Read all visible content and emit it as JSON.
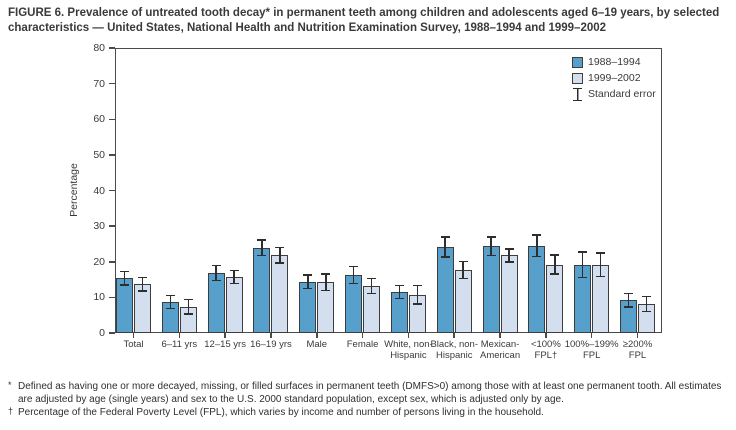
{
  "title": "FIGURE 6. Prevalence of untreated tooth decay* in permanent teeth among children and adolescents aged 6–19 years, by selected characteristics — United States, National Health and Nutrition Examination Survey, 1988–1994 and 1999–2002",
  "chart_data": {
    "type": "bar",
    "title": "Prevalence of untreated tooth decay in permanent teeth, by selected characteristics",
    "xlabel": "",
    "ylabel": "Percentage",
    "ylim": [
      0,
      80
    ],
    "ytick_step": 10,
    "grid": false,
    "legend_position": "top-right-inside",
    "legend_se_label": "Standard error",
    "colors": {
      "series_1988": "#57a0cc",
      "series_1999": "#d3deef",
      "bar_border": "#3d3d3d",
      "axis": "#4a4a4a",
      "error_bar": "#2e2e2e"
    },
    "categories": [
      [
        "Total"
      ],
      [
        "6–11 yrs"
      ],
      [
        "12–15 yrs"
      ],
      [
        "16–19 yrs"
      ],
      [
        "Male"
      ],
      [
        "Female"
      ],
      [
        "White, non-",
        "Hispanic"
      ],
      [
        "Black, non-",
        "Hispanic"
      ],
      [
        "Mexican-",
        "American"
      ],
      [
        "<100%",
        "FPL†"
      ],
      [
        "100%–199%",
        "FPL"
      ],
      [
        "≥200%",
        "FPL"
      ]
    ],
    "series": [
      {
        "name": "1988–1994",
        "values": [
          15.4,
          8.7,
          16.8,
          23.9,
          14.4,
          16.3,
          11.5,
          24.2,
          24.4,
          24.5,
          19.2,
          9.2
        ],
        "standard_errors": [
          1.9,
          1.8,
          2.1,
          2.2,
          1.9,
          2.4,
          1.8,
          2.8,
          2.6,
          3.0,
          3.6,
          1.9
        ]
      },
      {
        "name": "1999–2002",
        "values": [
          13.7,
          7.4,
          15.7,
          21.8,
          14.3,
          13.2,
          10.8,
          17.7,
          21.8,
          19.2,
          19.2,
          8.1
        ],
        "standard_errors": [
          1.9,
          2.0,
          1.8,
          2.2,
          2.3,
          2.1,
          2.6,
          2.4,
          1.8,
          2.7,
          3.3,
          2.1
        ]
      }
    ]
  },
  "footnotes": [
    {
      "marker": "*",
      "text": "Defined as having one or more decayed, missing, or filled surfaces in permanent teeth (DMFS>0) among those with at least one permanent tooth. All estimates are adjusted by age (single years) and sex to the U.S. 2000 standard population, except sex, which is adjusted only by age."
    },
    {
      "marker": "†",
      "text": "Percentage of the Federal Poverty Level (FPL), which varies by income and number of persons living in the household."
    }
  ]
}
